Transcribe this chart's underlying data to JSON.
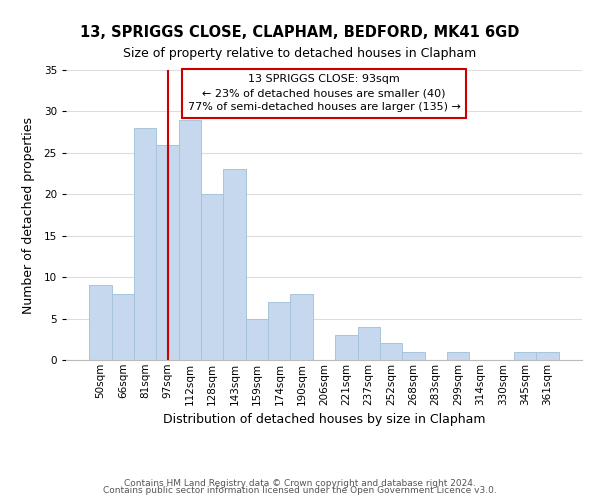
{
  "title": "13, SPRIGGS CLOSE, CLAPHAM, BEDFORD, MK41 6GD",
  "subtitle": "Size of property relative to detached houses in Clapham",
  "xlabel": "Distribution of detached houses by size in Clapham",
  "ylabel": "Number of detached properties",
  "bar_labels": [
    "50sqm",
    "66sqm",
    "81sqm",
    "97sqm",
    "112sqm",
    "128sqm",
    "143sqm",
    "159sqm",
    "174sqm",
    "190sqm",
    "206sqm",
    "221sqm",
    "237sqm",
    "252sqm",
    "268sqm",
    "283sqm",
    "299sqm",
    "314sqm",
    "330sqm",
    "345sqm",
    "361sqm"
  ],
  "bar_values": [
    9,
    8,
    28,
    26,
    29,
    20,
    23,
    5,
    7,
    8,
    0,
    3,
    4,
    2,
    1,
    0,
    1,
    0,
    0,
    1,
    1
  ],
  "bar_color": "#c5d8ed",
  "bar_edge_color": "#a8c4dc",
  "vline_x_index": 3,
  "vline_color": "#cc0000",
  "annotation_line1": "13 SPRIGGS CLOSE: 93sqm",
  "annotation_line2": "← 23% of detached houses are smaller (40)",
  "annotation_line3": "77% of semi-detached houses are larger (135) →",
  "annotation_box_color": "#ffffff",
  "annotation_box_edge_color": "#cc0000",
  "ylim": [
    0,
    35
  ],
  "yticks": [
    0,
    5,
    10,
    15,
    20,
    25,
    30,
    35
  ],
  "footer_line1": "Contains HM Land Registry data © Crown copyright and database right 2024.",
  "footer_line2": "Contains public sector information licensed under the Open Government Licence v3.0.",
  "background_color": "#ffffff",
  "grid_color": "#dddddd",
  "title_fontsize": 10.5,
  "subtitle_fontsize": 9,
  "axis_label_fontsize": 9,
  "tick_fontsize": 7.5,
  "annotation_fontsize": 8,
  "footer_fontsize": 6.5
}
